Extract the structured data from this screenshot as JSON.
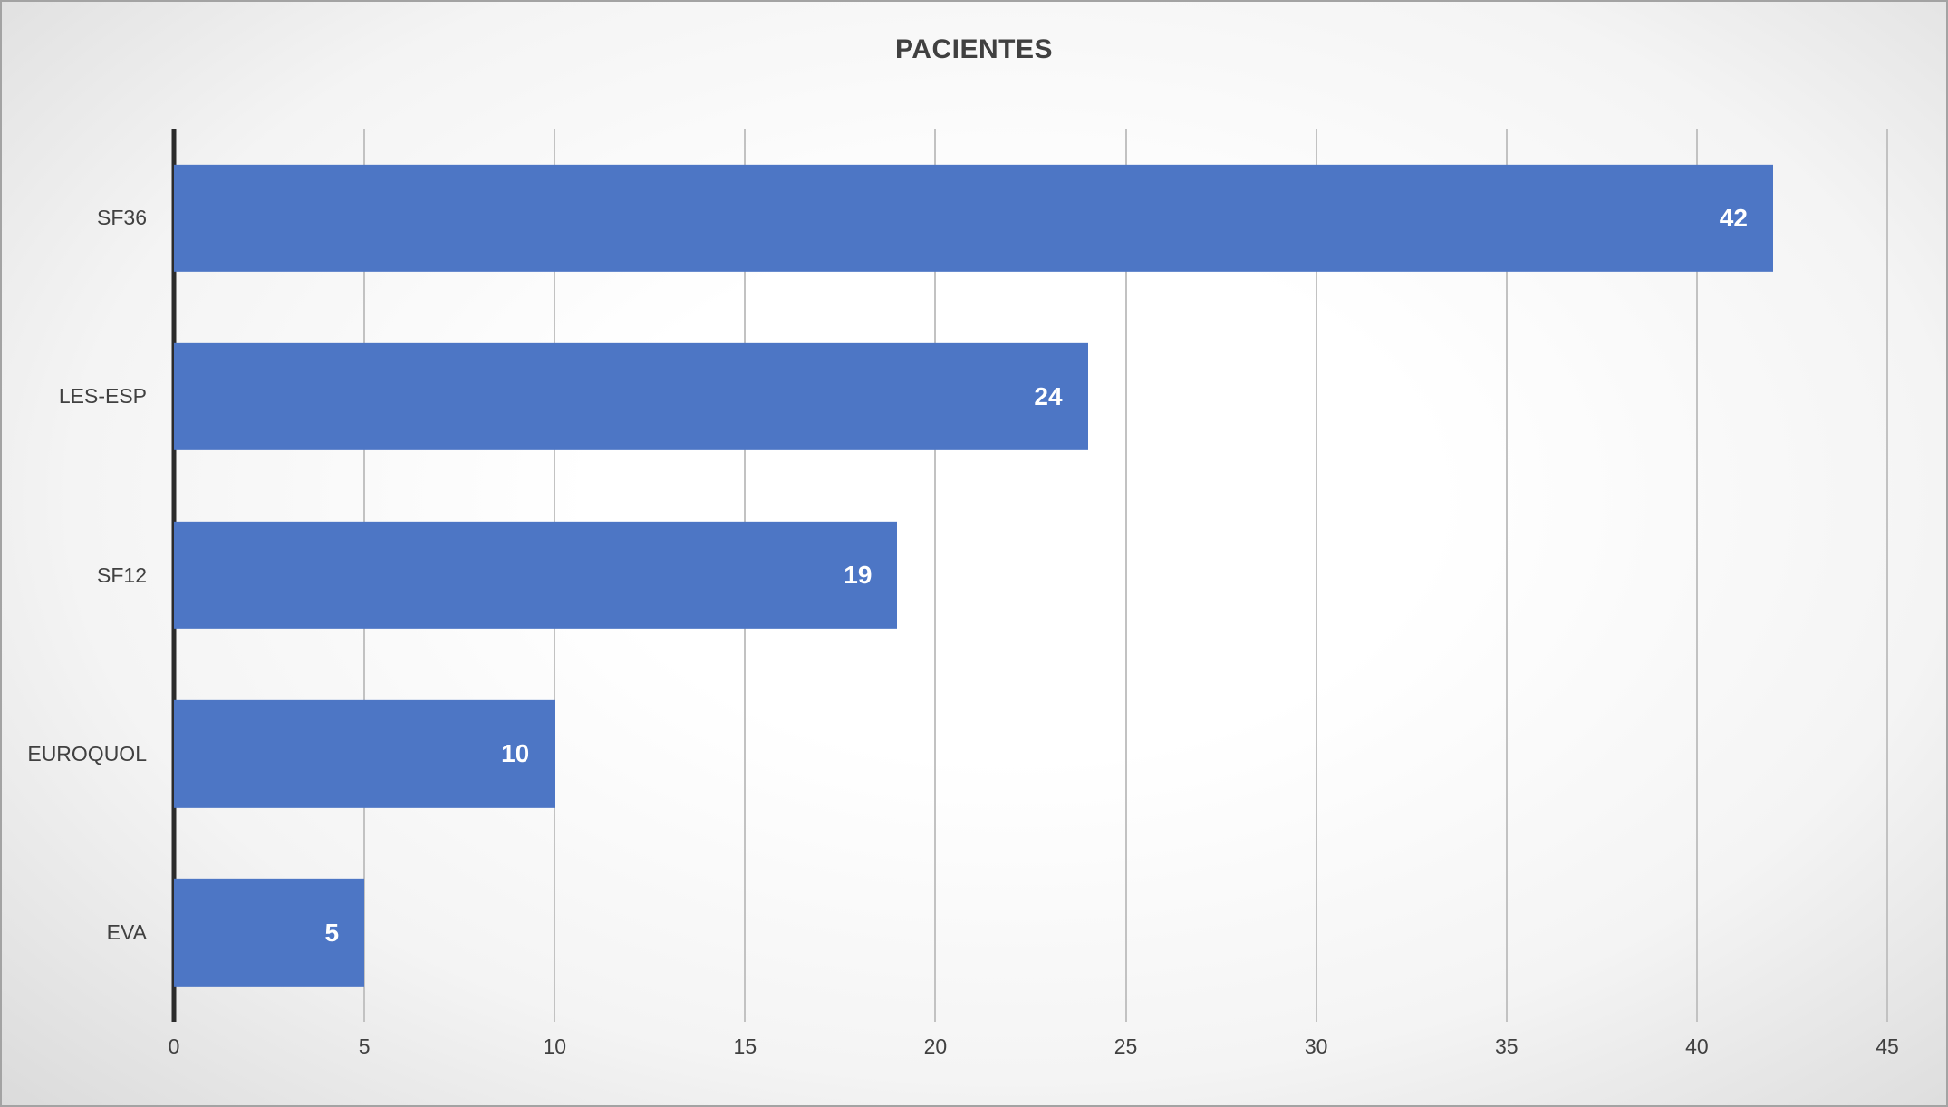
{
  "chart_data": {
    "type": "bar",
    "orientation": "horizontal",
    "title": "PACIENTES",
    "categories": [
      "SF36",
      "LES-ESP",
      "SF12",
      "EUROQUOL",
      "EVA"
    ],
    "values": [
      42,
      24,
      19,
      10,
      5
    ],
    "xlabel": "",
    "ylabel": "",
    "xlim": [
      0,
      45
    ],
    "xticks": [
      0,
      5,
      10,
      15,
      20,
      25,
      30,
      35,
      40,
      45
    ],
    "grid": true,
    "legend": false,
    "value_labels": "inside-end",
    "colors": {
      "bar": "#4d76c5",
      "value_label": "#ffffff",
      "title": "#404040",
      "axis_line": "#2b2b2b",
      "gridline": "#c2c2c2",
      "background_edge": "#d5d5d5",
      "background_center": "#ffffff"
    }
  }
}
